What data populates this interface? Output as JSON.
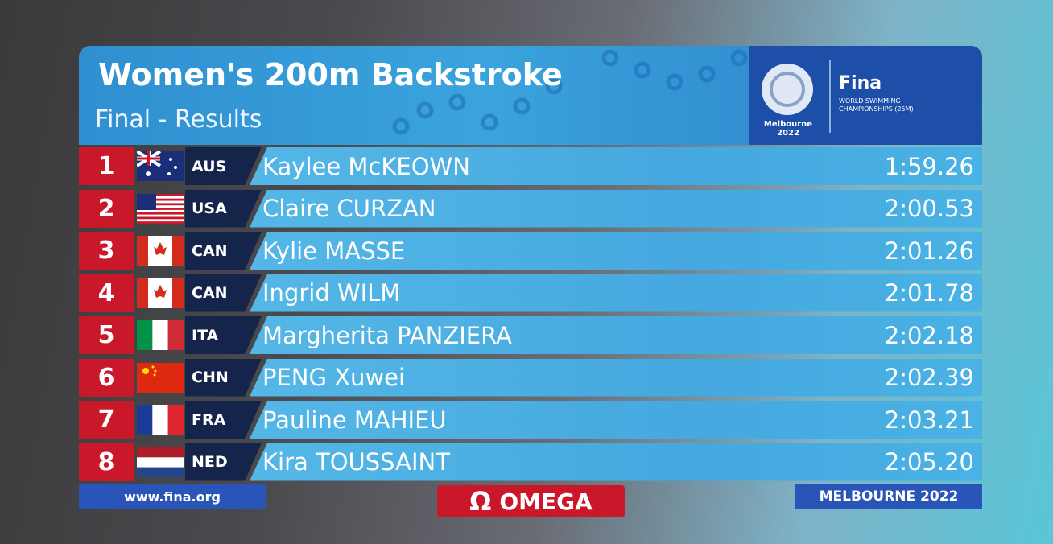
{
  "header": {
    "title": "Women's 200m Backstroke",
    "subtitle": "Final - Results"
  },
  "logo": {
    "city": "Melbourne 2022",
    "brand": "Fina",
    "event_lines": [
      "WORLD SWIMMING",
      "CHAMPIONSHIPS (25M)"
    ]
  },
  "results": [
    {
      "rank": 1,
      "country": "AUS",
      "name": "Kaylee McKEOWN",
      "time": "1:59.26"
    },
    {
      "rank": 2,
      "country": "USA",
      "name": "Claire CURZAN",
      "time": "2:00.53"
    },
    {
      "rank": 3,
      "country": "CAN",
      "name": "Kylie MASSE",
      "time": "2:01.26"
    },
    {
      "rank": 4,
      "country": "CAN",
      "name": "Ingrid WILM",
      "time": "2:01.78"
    },
    {
      "rank": 5,
      "country": "ITA",
      "name": "Margherita PANZIERA",
      "time": "2:02.18"
    },
    {
      "rank": 6,
      "country": "CHN",
      "name": "PENG Xuwei",
      "time": "2:02.39"
    },
    {
      "rank": 7,
      "country": "FRA",
      "name": "Pauline MAHIEU",
      "time": "2:03.21"
    },
    {
      "rank": 8,
      "country": "NED",
      "name": "Kira TOUSSAINT",
      "time": "2:05.20"
    }
  ],
  "footer": {
    "website": "www.fina.org",
    "sponsor_mark": "Ω",
    "sponsor": "OMEGA",
    "location": "MELBOURNE 2022"
  }
}
